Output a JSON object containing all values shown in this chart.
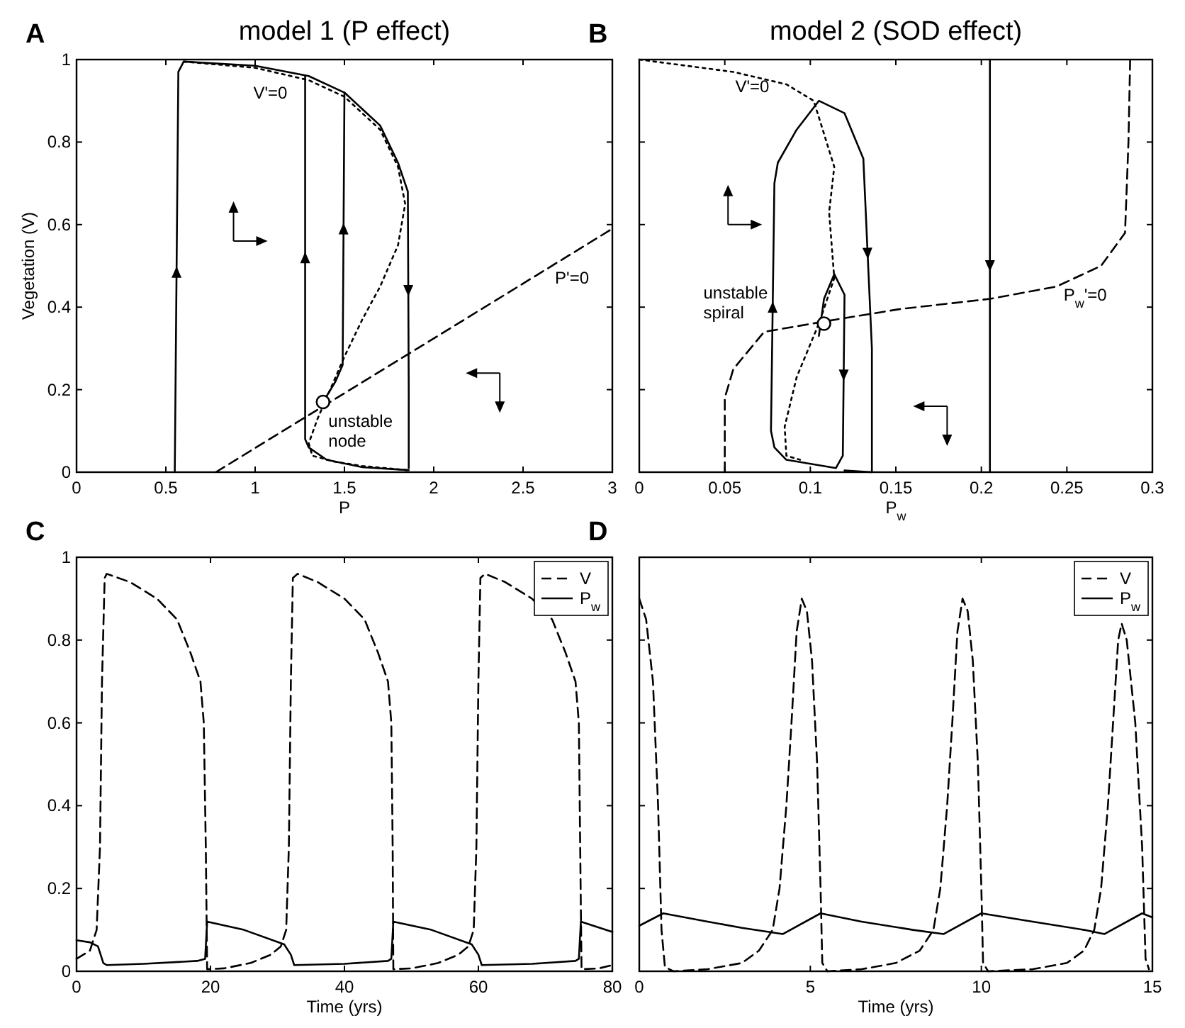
{
  "chart_data": [
    {
      "type": "line",
      "title": "model 1 (P effect)",
      "xlabel": "P",
      "ylabel": "Vegetation (V)",
      "xlim": [
        0,
        3
      ],
      "ylim": [
        0,
        1
      ],
      "xticks": [
        0,
        0.5,
        1,
        1.5,
        2,
        2.5,
        3
      ],
      "yticks": [
        0,
        0.2,
        0.4,
        0.6,
        0.8,
        1
      ],
      "annotations": [
        "A",
        "V'=0",
        "P'=0",
        "unstable\nnode"
      ],
      "series": [
        {
          "color": "#000000",
          "line_style": "dotted",
          "x": [
            0.6,
            1.0,
            1.3,
            1.5,
            1.7,
            1.8,
            1.84,
            1.8,
            1.7,
            1.6,
            1.5,
            1.42,
            1.35,
            1.3,
            1.32,
            1.45,
            1.6,
            1.85
          ],
          "values": [
            0.995,
            0.98,
            0.95,
            0.91,
            0.83,
            0.74,
            0.65,
            0.55,
            0.45,
            0.37,
            0.28,
            0.2,
            0.13,
            0.07,
            0.04,
            0.025,
            0.015,
            0.005
          ]
        },
        {
          "color": "#000000",
          "line_style": "dashed",
          "x": [
            0.78,
            3.0
          ],
          "values": [
            0,
            0.59
          ]
        },
        {
          "color": "#000000",
          "line_style": "solid",
          "x": [
            0.55,
            0.57,
            0.6,
            1.0,
            1.3,
            1.5,
            1.7,
            1.8,
            1.855,
            1.86,
            1.86
          ],
          "values": [
            0,
            0.97,
            0.995,
            0.985,
            0.96,
            0.92,
            0.84,
            0.75,
            0.68,
            0.2,
            0.01
          ]
        },
        {
          "color": "#000000",
          "line_style": "solid",
          "x": [
            1.86,
            1.6,
            1.4,
            1.3,
            1.28,
            1.28
          ],
          "values": [
            0.005,
            0.012,
            0.03,
            0.06,
            0.08,
            0.96
          ]
        },
        {
          "color": "#000000",
          "line_style": "solid",
          "x": [
            1.38,
            1.45,
            1.49,
            1.5
          ],
          "values": [
            0.17,
            0.22,
            0.26,
            0.92
          ]
        },
        {
          "type": "scatter",
          "marker": "circle",
          "color": "#000000",
          "x": [
            1.38
          ],
          "values": [
            0.17
          ]
        }
      ]
    },
    {
      "type": "line",
      "title": "model 2 (SOD effect)",
      "xlabel": "P$_{w}$",
      "xlim": [
        0,
        0.3
      ],
      "ylim": [
        0,
        1
      ],
      "xticks": [
        0,
        0.05,
        0.1,
        0.15,
        0.2,
        0.25,
        0.3
      ],
      "yticks": [
        0,
        0.2,
        0.4,
        0.6,
        0.8,
        1
      ],
      "tick_labels": "x",
      "annotations": [
        "B",
        "V'=0",
        "P$_{w}$'=0",
        "unstable\nspiral"
      ],
      "series": [
        {
          "color": "#000000",
          "line_style": "dotted",
          "x": [
            0,
            0.055,
            0.086,
            0.102,
            0.114,
            0.111,
            0.114,
            0.105,
            0.092,
            0.085,
            0.086,
            0.094
          ],
          "values": [
            1.0,
            0.97,
            0.94,
            0.9,
            0.74,
            0.63,
            0.47,
            0.36,
            0.23,
            0.11,
            0.04,
            0.03
          ]
        },
        {
          "color": "#000000",
          "line_style": "dashed",
          "x": [
            0.05,
            0.05,
            0.055,
            0.073,
            0.115,
            0.152,
            0.205,
            0.244,
            0.27,
            0.284,
            0.286,
            0.287
          ],
          "values": [
            0,
            0.18,
            0.25,
            0.34,
            0.37,
            0.395,
            0.42,
            0.45,
            0.5,
            0.58,
            0.8,
            1.0
          ]
        },
        {
          "color": "#000000",
          "line_style": "solid",
          "x": [
            0.105,
            0.108,
            0.114,
            0.12,
            0.119,
            0.115,
            0.086,
            0.079,
            0.077,
            0.079,
            0.081,
            0.092,
            0.105,
            0.12,
            0.131,
            0.136,
            0.136,
            0.12
          ],
          "values": [
            0.33,
            0.42,
            0.48,
            0.43,
            0.04,
            0.01,
            0.03,
            0.06,
            0.1,
            0.7,
            0.75,
            0.83,
            0.9,
            0.87,
            0.76,
            0.3,
            0.0,
            0.004
          ]
        },
        {
          "color": "#000000",
          "line_style": "solid",
          "x": [
            0.205,
            0.205
          ],
          "values": [
            1.0,
            0.0
          ]
        },
        {
          "type": "scatter",
          "marker": "circle",
          "color": "#000000",
          "x": [
            0.108
          ],
          "values": [
            0.36
          ]
        }
      ]
    },
    {
      "type": "line",
      "xlabel": "Time (yrs)",
      "xlim": [
        0,
        80
      ],
      "ylim": [
        0,
        1
      ],
      "xticks": [
        0,
        20,
        40,
        60,
        80
      ],
      "yticks": [
        0,
        0.2,
        0.4,
        0.6,
        0.8,
        1
      ],
      "legend": "top right",
      "annotations": [
        "C"
      ],
      "series": [
        {
          "name": "V",
          "color": "#000000",
          "line_style": "dashed",
          "x": [
            0,
            2,
            3,
            3.5,
            3.8,
            4.2,
            4.5,
            8,
            12,
            15,
            17,
            18.5,
            19,
            19.3,
            19.5,
            22,
            26,
            29,
            30.5,
            31.3,
            31.7,
            32,
            32.3,
            33,
            36,
            40,
            43,
            45,
            46.5,
            47,
            47.2,
            47.3,
            50,
            54,
            57,
            58.5,
            59.3,
            59.7,
            60,
            60.3,
            61,
            64,
            68,
            71,
            73,
            74.5,
            75,
            75.2,
            75.4,
            78,
            80
          ],
          "values": [
            0.03,
            0.05,
            0.1,
            0.3,
            0.7,
            0.95,
            0.96,
            0.94,
            0.9,
            0.85,
            0.77,
            0.7,
            0.6,
            0.3,
            0.005,
            0.007,
            0.02,
            0.04,
            0.06,
            0.1,
            0.3,
            0.7,
            0.95,
            0.96,
            0.94,
            0.9,
            0.85,
            0.77,
            0.7,
            0.6,
            0.3,
            0.005,
            0.007,
            0.02,
            0.04,
            0.06,
            0.1,
            0.3,
            0.7,
            0.95,
            0.96,
            0.94,
            0.9,
            0.85,
            0.77,
            0.7,
            0.6,
            0.3,
            0.005,
            0.007,
            0.015
          ]
        },
        {
          "name": "P$_{w}$",
          "color": "#000000",
          "line_style": "solid",
          "x": [
            0,
            2,
            3.2,
            4,
            4.5,
            10,
            18,
            19.2,
            19.5,
            25,
            31,
            32,
            32.5,
            40,
            46.5,
            47,
            47.3,
            53,
            59,
            60,
            60.5,
            68,
            74.5,
            75,
            75.3,
            80
          ],
          "values": [
            0.075,
            0.07,
            0.06,
            0.02,
            0.015,
            0.018,
            0.025,
            0.03,
            0.12,
            0.1,
            0.065,
            0.04,
            0.015,
            0.018,
            0.025,
            0.03,
            0.12,
            0.1,
            0.065,
            0.04,
            0.015,
            0.018,
            0.025,
            0.03,
            0.12,
            0.095
          ]
        }
      ]
    },
    {
      "type": "line",
      "xlabel": "Time (yrs)",
      "xlim": [
        0,
        15
      ],
      "ylim": [
        0,
        1
      ],
      "xticks": [
        0,
        5,
        10,
        15
      ],
      "yticks": [
        0,
        0.2,
        0.4,
        0.6,
        0.8,
        1
      ],
      "tick_labels": "x",
      "legend": "top right",
      "annotations": [
        "D"
      ],
      "series": [
        {
          "name": "V",
          "color": "#000000",
          "line_style": "dashed",
          "x": [
            0,
            0.2,
            0.4,
            0.55,
            0.65,
            0.75,
            1,
            2,
            3,
            3.5,
            3.9,
            4.1,
            4.3,
            4.45,
            4.6,
            4.75,
            4.9,
            5.05,
            5.2,
            5.3,
            5.35,
            5.5,
            6.5,
            7.5,
            8.2,
            8.6,
            8.8,
            9,
            9.15,
            9.3,
            9.45,
            9.6,
            9.75,
            9.9,
            10,
            10.05,
            10.2,
            11.5,
            12.5,
            13,
            13.3,
            13.5,
            13.7,
            13.85,
            14,
            14.1,
            14.25,
            14.5,
            14.7,
            14.8,
            14.9
          ],
          "values": [
            0.9,
            0.85,
            0.7,
            0.4,
            0.1,
            0.01,
            0,
            0.005,
            0.02,
            0.05,
            0.1,
            0.2,
            0.4,
            0.6,
            0.82,
            0.9,
            0.87,
            0.75,
            0.5,
            0.2,
            0.02,
            0,
            0.005,
            0.02,
            0.05,
            0.1,
            0.2,
            0.4,
            0.6,
            0.82,
            0.9,
            0.87,
            0.75,
            0.5,
            0.2,
            0.02,
            0,
            0.005,
            0.02,
            0.05,
            0.1,
            0.2,
            0.4,
            0.6,
            0.8,
            0.84,
            0.8,
            0.6,
            0.3,
            0.03,
            0.005
          ]
        },
        {
          "name": "P$_{w}$",
          "color": "#000000",
          "line_style": "solid",
          "x": [
            0,
            0.7,
            2,
            3,
            4.2,
            5.3,
            6.5,
            8,
            8.9,
            10,
            11.5,
            13,
            13.6,
            14.7,
            15
          ],
          "values": [
            0.11,
            0.14,
            0.12,
            0.105,
            0.09,
            0.14,
            0.12,
            0.1,
            0.09,
            0.14,
            0.12,
            0.1,
            0.09,
            0.14,
            0.13
          ]
        }
      ]
    }
  ]
}
